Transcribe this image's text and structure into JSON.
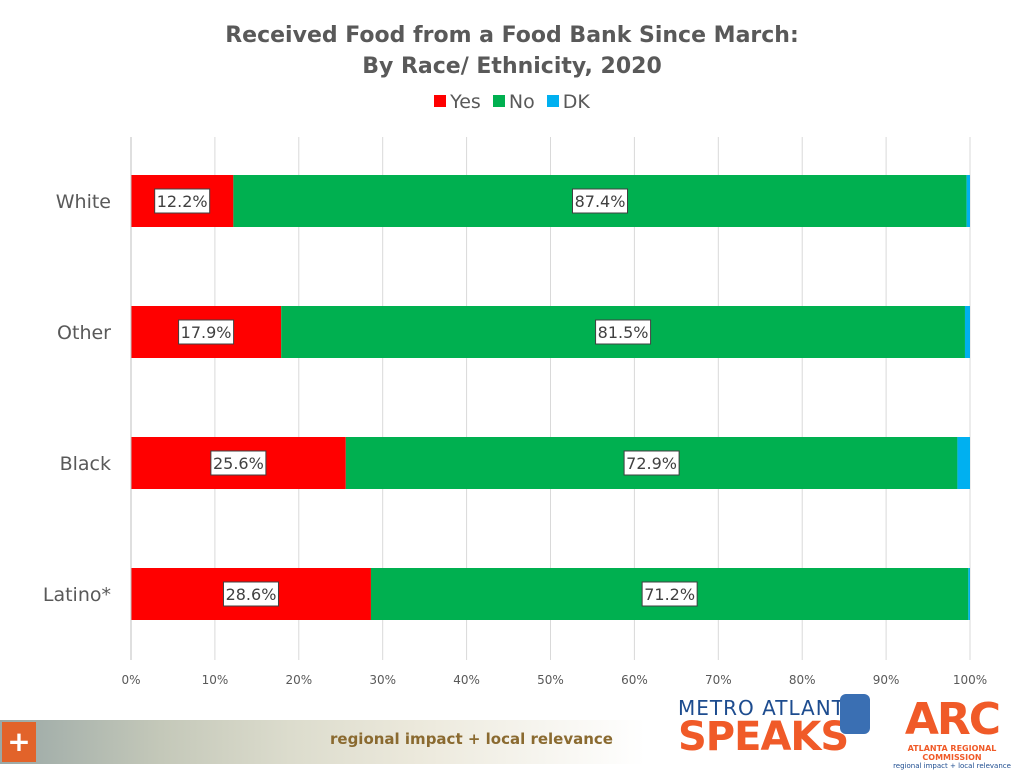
{
  "chart_data": {
    "type": "bar",
    "orientation": "horizontal",
    "stacked": true,
    "title": "Received Food from a Food Bank Since March:",
    "subtitle": "By Race/ Ethnicity, 2020",
    "categories": [
      "White",
      "Other",
      "Black",
      "Latino*"
    ],
    "series": [
      {
        "name": "Yes",
        "color": "#ff0000",
        "values": [
          12.2,
          17.9,
          25.6,
          28.6
        ],
        "labels": [
          "12.2%",
          "17.9%",
          "25.6%",
          "28.6%"
        ]
      },
      {
        "name": "No",
        "color": "#00b050",
        "values": [
          87.4,
          81.5,
          72.9,
          71.2
        ],
        "labels": [
          "87.4%",
          "81.5%",
          "72.9%",
          "71.2%"
        ]
      },
      {
        "name": "DK",
        "color": "#00b0f0",
        "values": [
          0.4,
          0.6,
          1.5,
          0.2
        ]
      }
    ],
    "xlim": [
      0,
      100
    ],
    "xticks": [
      "0%",
      "10%",
      "20%",
      "30%",
      "40%",
      "50%",
      "60%",
      "70%",
      "80%",
      "90%",
      "100%"
    ],
    "grid": true,
    "legend_position": "top"
  },
  "footer": {
    "tagline": "regional impact + local relevance",
    "plus_symbol": "+",
    "logo_metro_top": "METRO ATLANTA",
    "logo_metro_bottom": "SPEAKS",
    "logo_arc_mark": "ARC",
    "logo_arc_name": "ATLANTA REGIONAL COMMISSION",
    "logo_arc_sub": "regional impact + local relevance"
  }
}
